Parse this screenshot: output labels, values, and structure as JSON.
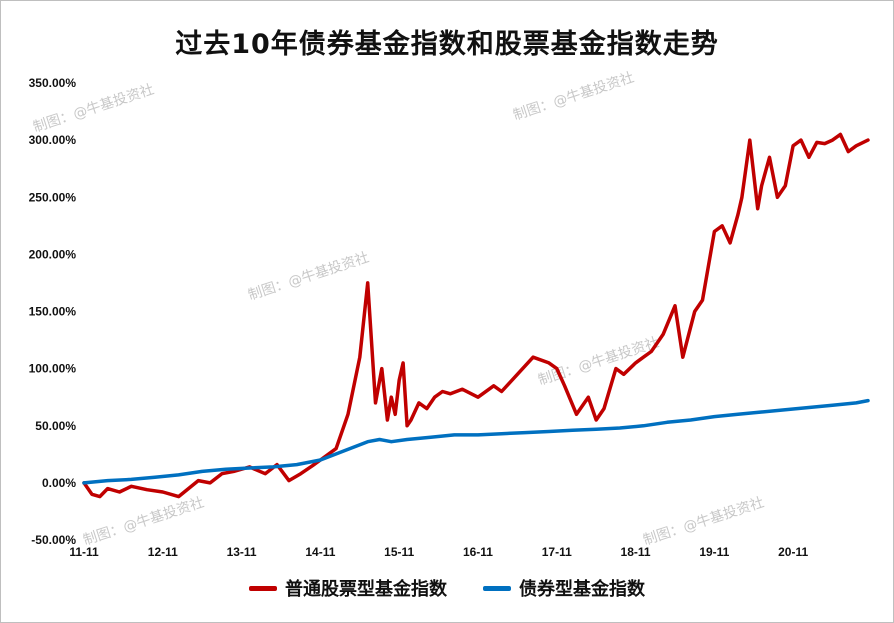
{
  "chart_data": {
    "type": "line",
    "title": "过去10年债券基金指数和股票基金指数走势",
    "xlabel": "",
    "ylabel": "",
    "ylim": [
      -50,
      350
    ],
    "yticks": [
      "350.00%",
      "300.00%",
      "250.00%",
      "200.00%",
      "150.00%",
      "100.00%",
      "50.00%",
      "0.00%",
      "-50.00%"
    ],
    "xticks": [
      "11-11",
      "12-11",
      "13-11",
      "14-11",
      "15-11",
      "16-11",
      "17-11",
      "18-11",
      "19-11",
      "20-11"
    ],
    "xlim": [
      0,
      9.95
    ],
    "grid": false,
    "legend_position": "bottom",
    "watermark": "制图：@牛基投资社",
    "series": [
      {
        "name": "普通股票型基金指数",
        "color": "#c00000",
        "x": [
          0.0,
          0.1,
          0.2,
          0.3,
          0.45,
          0.6,
          0.8,
          1.0,
          1.2,
          1.45,
          1.6,
          1.75,
          1.9,
          2.1,
          2.3,
          2.45,
          2.6,
          2.75,
          2.9,
          3.0,
          3.2,
          3.35,
          3.5,
          3.6,
          3.7,
          3.78,
          3.85,
          3.9,
          3.95,
          4.0,
          4.05,
          4.1,
          4.15,
          4.25,
          4.35,
          4.45,
          4.55,
          4.65,
          4.8,
          5.0,
          5.2,
          5.3,
          5.5,
          5.7,
          5.9,
          6.0,
          6.1,
          6.25,
          6.4,
          6.5,
          6.6,
          6.75,
          6.85,
          7.0,
          7.1,
          7.2,
          7.35,
          7.5,
          7.6,
          7.75,
          7.85,
          8.0,
          8.1,
          8.2,
          8.3,
          8.35,
          8.45,
          8.55,
          8.6,
          8.7,
          8.8,
          8.9,
          9.0,
          9.1,
          9.2,
          9.3,
          9.4,
          9.5,
          9.6,
          9.7,
          9.8,
          9.95
        ],
        "y": [
          0,
          -10,
          -12,
          -5,
          -8,
          -3,
          -6,
          -8,
          -12,
          2,
          0,
          8,
          10,
          14,
          8,
          16,
          2,
          8,
          15,
          20,
          30,
          60,
          110,
          175,
          70,
          100,
          55,
          75,
          60,
          90,
          105,
          50,
          55,
          70,
          65,
          75,
          80,
          78,
          82,
          75,
          85,
          80,
          95,
          110,
          105,
          100,
          85,
          60,
          75,
          55,
          65,
          100,
          95,
          105,
          110,
          115,
          130,
          155,
          110,
          150,
          160,
          220,
          225,
          210,
          235,
          250,
          300,
          240,
          260,
          285,
          250,
          260,
          295,
          300,
          285,
          298,
          297,
          300,
          305,
          290,
          295,
          300
        ]
      },
      {
        "name": "债券型基金指数",
        "color": "#0070c0",
        "x": [
          0.0,
          0.3,
          0.6,
          0.9,
          1.2,
          1.5,
          1.8,
          2.1,
          2.4,
          2.7,
          3.0,
          3.3,
          3.6,
          3.75,
          3.9,
          4.1,
          4.4,
          4.7,
          5.0,
          5.3,
          5.6,
          5.9,
          6.2,
          6.5,
          6.8,
          7.1,
          7.4,
          7.7,
          8.0,
          8.3,
          8.6,
          8.9,
          9.2,
          9.5,
          9.8,
          9.95
        ],
        "y": [
          0,
          2,
          3,
          5,
          7,
          10,
          12,
          13,
          14,
          16,
          20,
          28,
          36,
          38,
          36,
          38,
          40,
          42,
          42,
          43,
          44,
          45,
          46,
          47,
          48,
          50,
          53,
          55,
          58,
          60,
          62,
          64,
          66,
          68,
          70,
          72
        ]
      }
    ]
  }
}
